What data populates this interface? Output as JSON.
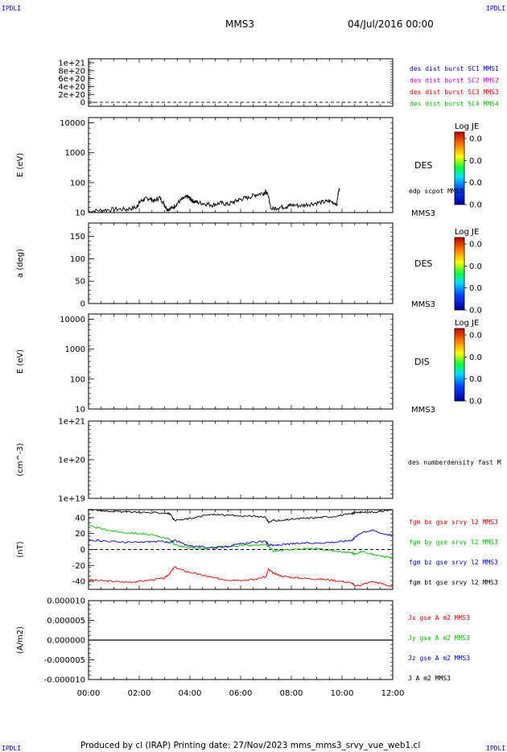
{
  "header": {
    "corner_tl": "IPDLI",
    "corner_tr": "IPDLI",
    "corner_bl": "IPDLI",
    "corner_br": "IPDLI",
    "title": "MMS3",
    "date": "04/Jul/2016 00:00"
  },
  "footer": {
    "text": "Produced by cl (IRAP)   Printing date: 27/Nov/2023   mms_mms3_srvy_vue_web1.cl"
  },
  "x_ticks": [
    "00:00",
    "02:00",
    "04:00",
    "06:00",
    "08:00",
    "10:00",
    "12:00"
  ],
  "colors": {
    "black": "#000000",
    "blue": "#0000d0",
    "magenta": "#d000d0",
    "red": "#e00000",
    "green": "#00c000"
  },
  "chart_data": [
    {
      "type": "line",
      "x": [
        0,
        2,
        4,
        6,
        8,
        10,
        12
      ],
      "xlim": [
        0,
        12
      ],
      "ylim": [
        -1e+20,
        1.1e+21
      ],
      "yticks": [
        "1e+21",
        "8e+20",
        "6e+20",
        "4e+20",
        "2e+20",
        "0"
      ],
      "ylabel": "",
      "series": [],
      "legend": [
        {
          "text": "des dist burst SC1 MMS1",
          "color": "#0000d0"
        },
        {
          "text": "des dist burst SC2 MMS2",
          "color": "#d000d0"
        },
        {
          "text": "des dist burst SC3 MMS3",
          "color": "#e00000"
        },
        {
          "text": "des dist burst SC4 MMS4",
          "color": "#00c000"
        }
      ]
    },
    {
      "type": "heatmap",
      "ylabel": "E (eV)",
      "yscale": "log",
      "ylim": [
        10,
        15000
      ],
      "yticks": [
        "10000",
        "1000",
        "100",
        "10"
      ],
      "panel_label": "DES",
      "probe_label": "MMS3",
      "colorbar": {
        "title": "Log JE",
        "ticks": [
          "0.0",
          "0.0",
          "0.0",
          "0.0"
        ]
      },
      "overlay": {
        "name": "edp scpot MMS3",
        "x": [
          0,
          0.5,
          1.0,
          1.5,
          1.9,
          2.0,
          2.2,
          2.4,
          2.6,
          2.8,
          3.0,
          3.1,
          3.3,
          3.5,
          3.7,
          3.9,
          4.0,
          4.1,
          4.3,
          4.6,
          4.9,
          5.2,
          5.5,
          5.8,
          6.0,
          6.3,
          6.6,
          6.9,
          7.0,
          7.2,
          7.5,
          7.8,
          8.0,
          8.4,
          8.8,
          9.2,
          9.5,
          9.8,
          9.9
        ],
        "y": [
          11,
          12,
          13,
          13,
          15,
          22,
          28,
          30,
          24,
          32,
          18,
          13,
          14,
          20,
          28,
          34,
          30,
          25,
          22,
          20,
          18,
          21,
          19,
          24,
          28,
          32,
          40,
          45,
          50,
          13,
          15,
          16,
          18,
          17,
          20,
          22,
          24,
          20,
          65
        ]
      }
    },
    {
      "type": "heatmap",
      "ylabel": "a (deg)",
      "ylim": [
        0,
        180
      ],
      "yticks": [
        "150",
        "100",
        "50",
        "0"
      ],
      "panel_label": "DES",
      "probe_label": "MMS3",
      "colorbar": {
        "title": "Log JE",
        "ticks": [
          "0.0",
          "0.0",
          "0.0",
          "0.0"
        ]
      }
    },
    {
      "type": "heatmap",
      "ylabel": "E (eV)",
      "yscale": "log",
      "ylim": [
        10,
        15000
      ],
      "yticks": [
        "10000",
        "1000",
        "100",
        "10"
      ],
      "panel_label": "DIS",
      "probe_label": "MMS3",
      "colorbar": {
        "title": "Log JE",
        "ticks": [
          "0.0",
          "0.0",
          "0.0",
          "0.0"
        ]
      }
    },
    {
      "type": "line",
      "ylabel": "(cm^-3)",
      "yscale": "log",
      "ylim": [
        1e+19,
        1e+21
      ],
      "yticks": [
        "1e+21",
        "1e+20",
        "1e+19"
      ],
      "legend": [
        {
          "text": "des numberdensity fast M",
          "color": "#000000"
        }
      ],
      "series": []
    },
    {
      "type": "line",
      "ylabel": "(nT)",
      "ylim": [
        -50,
        50
      ],
      "yticks": [
        "40",
        "20",
        "0",
        "-20",
        "-40"
      ],
      "x": [
        0,
        0.5,
        1.0,
        1.5,
        2.0,
        2.5,
        3.0,
        3.2,
        3.4,
        3.8,
        4.2,
        4.6,
        5.0,
        5.5,
        6.0,
        6.5,
        7.0,
        7.1,
        7.3,
        7.6,
        8.0,
        8.5,
        9.0,
        9.5,
        10.0,
        10.4,
        10.5,
        10.8,
        11.2,
        11.6,
        12.0
      ],
      "series": [
        {
          "name": "fgm bx gse srvy l2 MMS3",
          "color": "#e00000",
          "values": [
            -38,
            -39,
            -40,
            -41,
            -40,
            -38,
            -36,
            -30,
            -22,
            -27,
            -30,
            -33,
            -36,
            -38,
            -38,
            -38,
            -34,
            -25,
            -30,
            -33,
            -35,
            -36,
            -37,
            -38,
            -40,
            -42,
            -46,
            -44,
            -40,
            -43,
            -47
          ]
        },
        {
          "name": "fgm by gse srvy l2 MMS3",
          "color": "#00c000",
          "values": [
            30,
            26,
            23,
            21,
            20,
            18,
            15,
            13,
            6,
            3,
            2,
            1,
            3,
            4,
            5,
            5,
            6,
            4,
            -2,
            -1,
            0,
            1,
            1,
            -1,
            -3,
            -4,
            -6,
            -2,
            -6,
            -9,
            -10
          ]
        },
        {
          "name": "fgm bz gse srvy l2 MMS3",
          "color": "#0000d0",
          "values": [
            12,
            11,
            10,
            9,
            9,
            10,
            10,
            8,
            12,
            6,
            4,
            3,
            2,
            4,
            7,
            9,
            10,
            6,
            5,
            6,
            7,
            8,
            8,
            9,
            10,
            12,
            15,
            22,
            24,
            20,
            18
          ]
        },
        {
          "name": "fgm bt gse srvy l2 MMS3",
          "color": "#000000",
          "values": [
            50,
            49,
            48,
            47,
            47,
            46,
            46,
            45,
            36,
            38,
            40,
            43,
            44,
            43,
            42,
            42,
            40,
            34,
            37,
            36,
            38,
            39,
            40,
            41,
            43,
            45,
            46,
            47,
            47,
            48,
            50
          ]
        }
      ]
    },
    {
      "type": "line",
      "ylabel": "(A/m2)",
      "ylim": [
        -1e-05,
        1e-05
      ],
      "yticks": [
        "0.000010",
        "0.000005",
        "0.000000",
        "-0.000005",
        "-0.000010"
      ],
      "legend": [
        {
          "text": "Jx gse A m2 MMS3",
          "color": "#e00000"
        },
        {
          "text": "Jy gse A m2 MMS3",
          "color": "#00c000"
        },
        {
          "text": "Jz gse A m2 MMS3",
          "color": "#0000d0"
        },
        {
          "text": "J A m2 MMS3",
          "color": "#000000"
        }
      ],
      "series": [
        {
          "name": "J",
          "color": "#000000",
          "x": [
            0,
            12
          ],
          "values": [
            0,
            0
          ]
        }
      ]
    }
  ]
}
